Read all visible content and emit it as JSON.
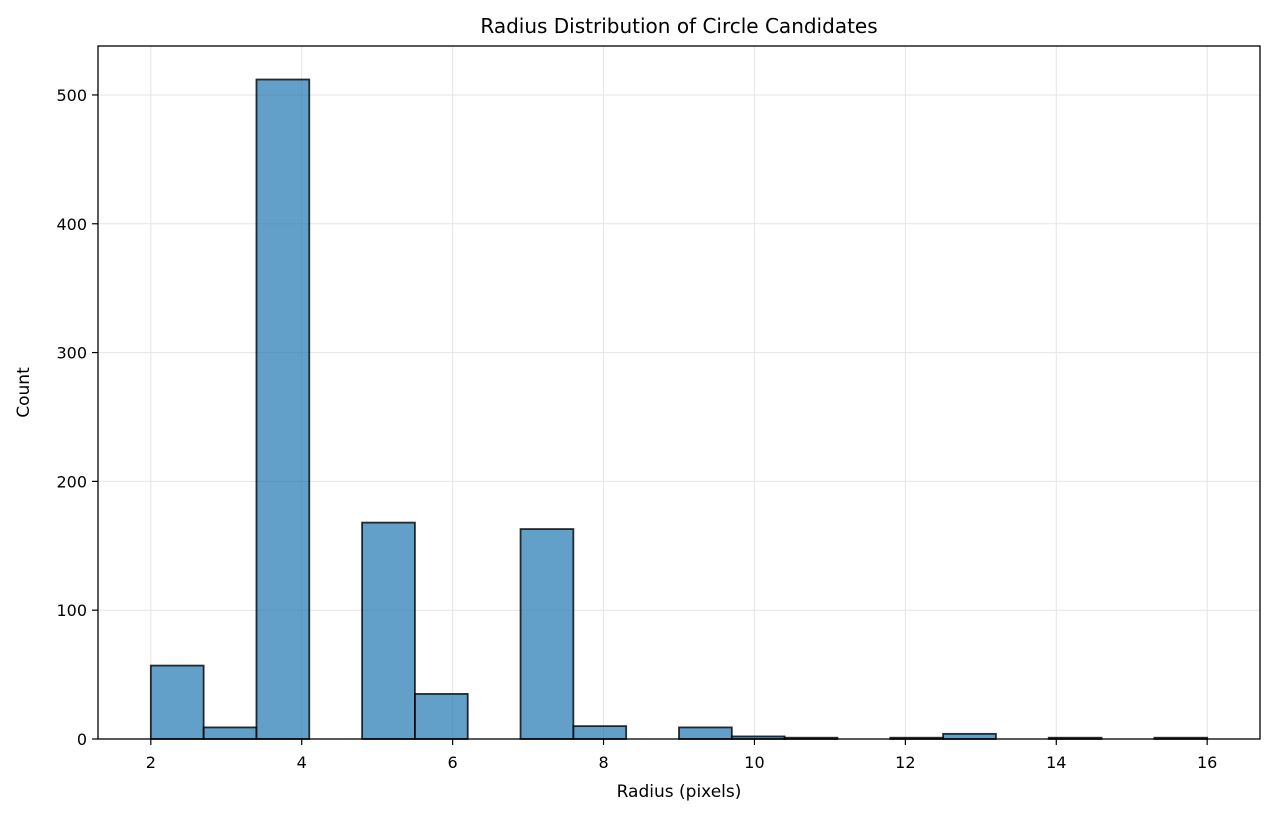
{
  "chart_data": {
    "type": "bar",
    "title": "Radius Distribution of Circle Candidates",
    "xlabel": "Radius (pixels)",
    "ylabel": "Count",
    "xlim": [
      1.3,
      16.7
    ],
    "ylim": [
      0,
      538
    ],
    "xticks": [
      2,
      4,
      6,
      8,
      10,
      12,
      14,
      16
    ],
    "yticks": [
      0,
      100,
      200,
      300,
      400,
      500
    ],
    "bin_width": 0.7,
    "bins": [
      {
        "x0": 2.0,
        "x1": 2.7,
        "count": 57
      },
      {
        "x0": 2.7,
        "x1": 3.4,
        "count": 9
      },
      {
        "x0": 3.4,
        "x1": 4.1,
        "count": 512
      },
      {
        "x0": 4.1,
        "x1": 4.8,
        "count": 0
      },
      {
        "x0": 4.8,
        "x1": 5.5,
        "count": 168
      },
      {
        "x0": 5.5,
        "x1": 6.2,
        "count": 35
      },
      {
        "x0": 6.2,
        "x1": 6.9,
        "count": 0
      },
      {
        "x0": 6.9,
        "x1": 7.6,
        "count": 163
      },
      {
        "x0": 7.6,
        "x1": 8.3,
        "count": 10
      },
      {
        "x0": 8.3,
        "x1": 9.0,
        "count": 0
      },
      {
        "x0": 9.0,
        "x1": 9.7,
        "count": 9
      },
      {
        "x0": 9.7,
        "x1": 10.4,
        "count": 2
      },
      {
        "x0": 10.4,
        "x1": 11.1,
        "count": 1
      },
      {
        "x0": 11.1,
        "x1": 11.8,
        "count": 0
      },
      {
        "x0": 11.8,
        "x1": 12.5,
        "count": 1
      },
      {
        "x0": 12.5,
        "x1": 13.2,
        "count": 4
      },
      {
        "x0": 13.2,
        "x1": 13.9,
        "count": 0
      },
      {
        "x0": 13.9,
        "x1": 14.6,
        "count": 1
      },
      {
        "x0": 14.6,
        "x1": 15.3,
        "count": 0
      },
      {
        "x0": 15.3,
        "x1": 16.0,
        "count": 1
      }
    ],
    "grid": true,
    "colors": {
      "bar_fill": "#1f77b4",
      "bar_opacity": 0.7,
      "bar_edge": "#000000",
      "grid": "#e5e5e5"
    }
  }
}
